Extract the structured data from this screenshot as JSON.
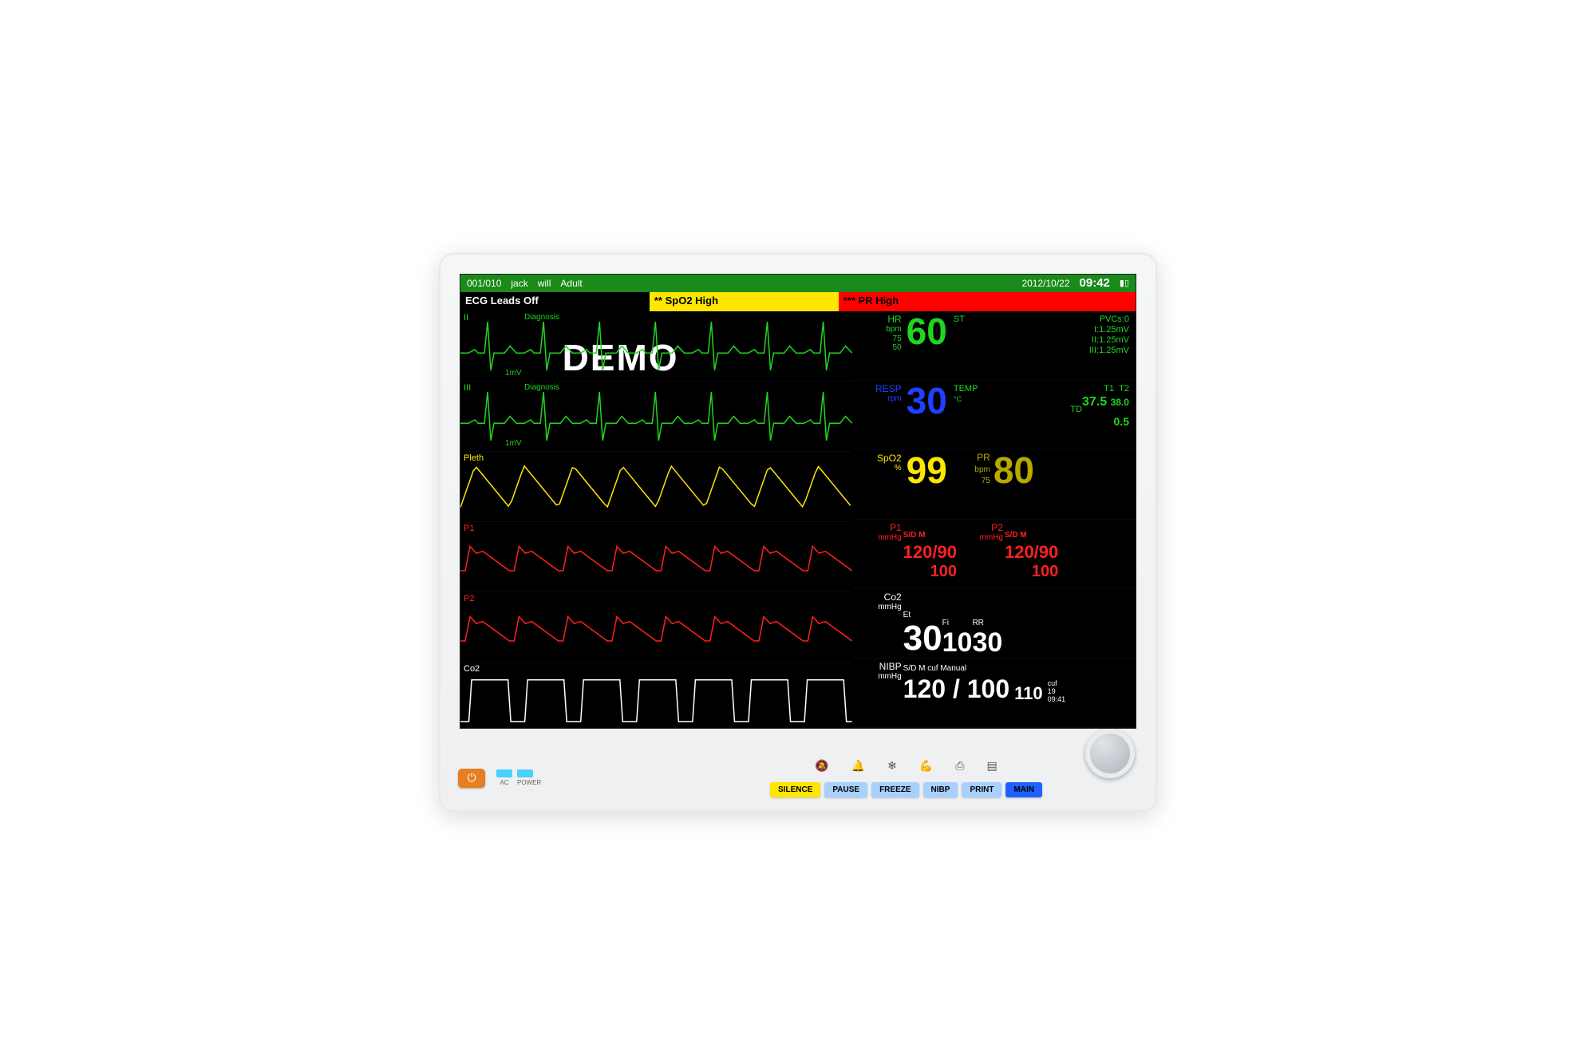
{
  "status": {
    "bed": "001/010",
    "first": "jack",
    "last": "will",
    "type": "Adult",
    "date": "2012/10/22",
    "time": "09:42"
  },
  "alerts": {
    "a1": "ECG Leads Off",
    "a2": "** SpO2 High",
    "a3": "*** PR High"
  },
  "demo": "DEMO",
  "colors": {
    "ecg": "#1fd61f",
    "resp": "#1fd61f",
    "pleth": "#ffe600",
    "p1": "#ff2020",
    "p2": "#ff2020",
    "co2": "#ffffff",
    "hr": "#1fd61f",
    "rr": "#2040ff",
    "spo2": "#ffe600",
    "pr": "#b8a800",
    "temp": "#1fd61f",
    "bp": "#ff2020",
    "white": "#ffffff",
    "st": "#1fd61f"
  },
  "waves": [
    {
      "id": "ecg2",
      "label": "II",
      "sublabel": "1mV",
      "tag": "Diagnosis",
      "color": "ecg",
      "type": "ecg"
    },
    {
      "id": "ecg3",
      "label": "III",
      "sublabel": "1mV",
      "tag": "Diagnosis",
      "color": "ecg",
      "type": "ecg"
    },
    {
      "id": "pleth",
      "label": "Pleth",
      "sublabel": "",
      "tag": "",
      "color": "pleth",
      "type": "sine"
    },
    {
      "id": "p1",
      "label": "P1",
      "sublabel": "",
      "tag": "",
      "color": "p1",
      "type": "art"
    },
    {
      "id": "p2",
      "label": "P2",
      "sublabel": "",
      "tag": "",
      "color": "p2",
      "type": "art"
    },
    {
      "id": "co2",
      "label": "Co2",
      "sublabel": "",
      "tag": "",
      "color": "co2",
      "type": "square"
    }
  ],
  "vitals": {
    "hr": {
      "label": "HR",
      "unit": "bpm",
      "lim": "75\n50",
      "value": "60"
    },
    "st": {
      "label": "ST",
      "pv": "PVCs:0",
      "i": "I:1.25mV",
      "ii": "II:1.25mV",
      "iii": "III:1.25mV"
    },
    "resp": {
      "label": "RESP",
      "unit": "rpm",
      "value": "30"
    },
    "temp": {
      "label": "TEMP",
      "unit": "°C",
      "t1l": "T1",
      "t2l": "T2",
      "t1": "37.5",
      "t2": "38.0",
      "tdl": "TD",
      "td": "0.5"
    },
    "spo2": {
      "label": "SpO2",
      "unit": "%",
      "value": "99"
    },
    "pr": {
      "label": "PR",
      "unit": "bpm",
      "lim": "75",
      "value": "80"
    },
    "p1": {
      "label": "P1",
      "unit": "mmHg",
      "hdr": "S/D M",
      "sd": "120/90",
      "m": "100"
    },
    "p2": {
      "label": "P2",
      "unit": "mmHg",
      "hdr": "S/D M",
      "sd": "120/90",
      "m": "100"
    },
    "co2": {
      "label": "Co2",
      "unit": "mmHg",
      "etl": "Et",
      "fil": "Fi",
      "rrl": "RR",
      "et": "30",
      "fi": "10",
      "rr": "30"
    },
    "nibp": {
      "label": "NIBP",
      "unit": "mmHg",
      "hdr": "S/D M cuf Manual",
      "sd": "120 / 100",
      "m": "110",
      "cufl": "cuf",
      "cuf": "19",
      "time": "09:41"
    }
  },
  "buttons": [
    {
      "id": "silence",
      "label": "SILENCE",
      "bg": "#ffe600",
      "fg": "#000"
    },
    {
      "id": "pause",
      "label": "PAUSE",
      "bg": "#a8d0ff",
      "fg": "#000"
    },
    {
      "id": "freeze",
      "label": "FREEZE",
      "bg": "#a8d0ff",
      "fg": "#000"
    },
    {
      "id": "nibp",
      "label": "NIBP",
      "bg": "#a8d0ff",
      "fg": "#000"
    },
    {
      "id": "print",
      "label": "PRINT",
      "bg": "#a8d0ff",
      "fg": "#000"
    },
    {
      "id": "main",
      "label": "MAIN",
      "bg": "#2060ff",
      "fg": "#000"
    }
  ],
  "leds": {
    "ac": "AC",
    "power": "POWER",
    "ac_color": "#4ad0ff",
    "power_color": "#4ad0ff"
  }
}
